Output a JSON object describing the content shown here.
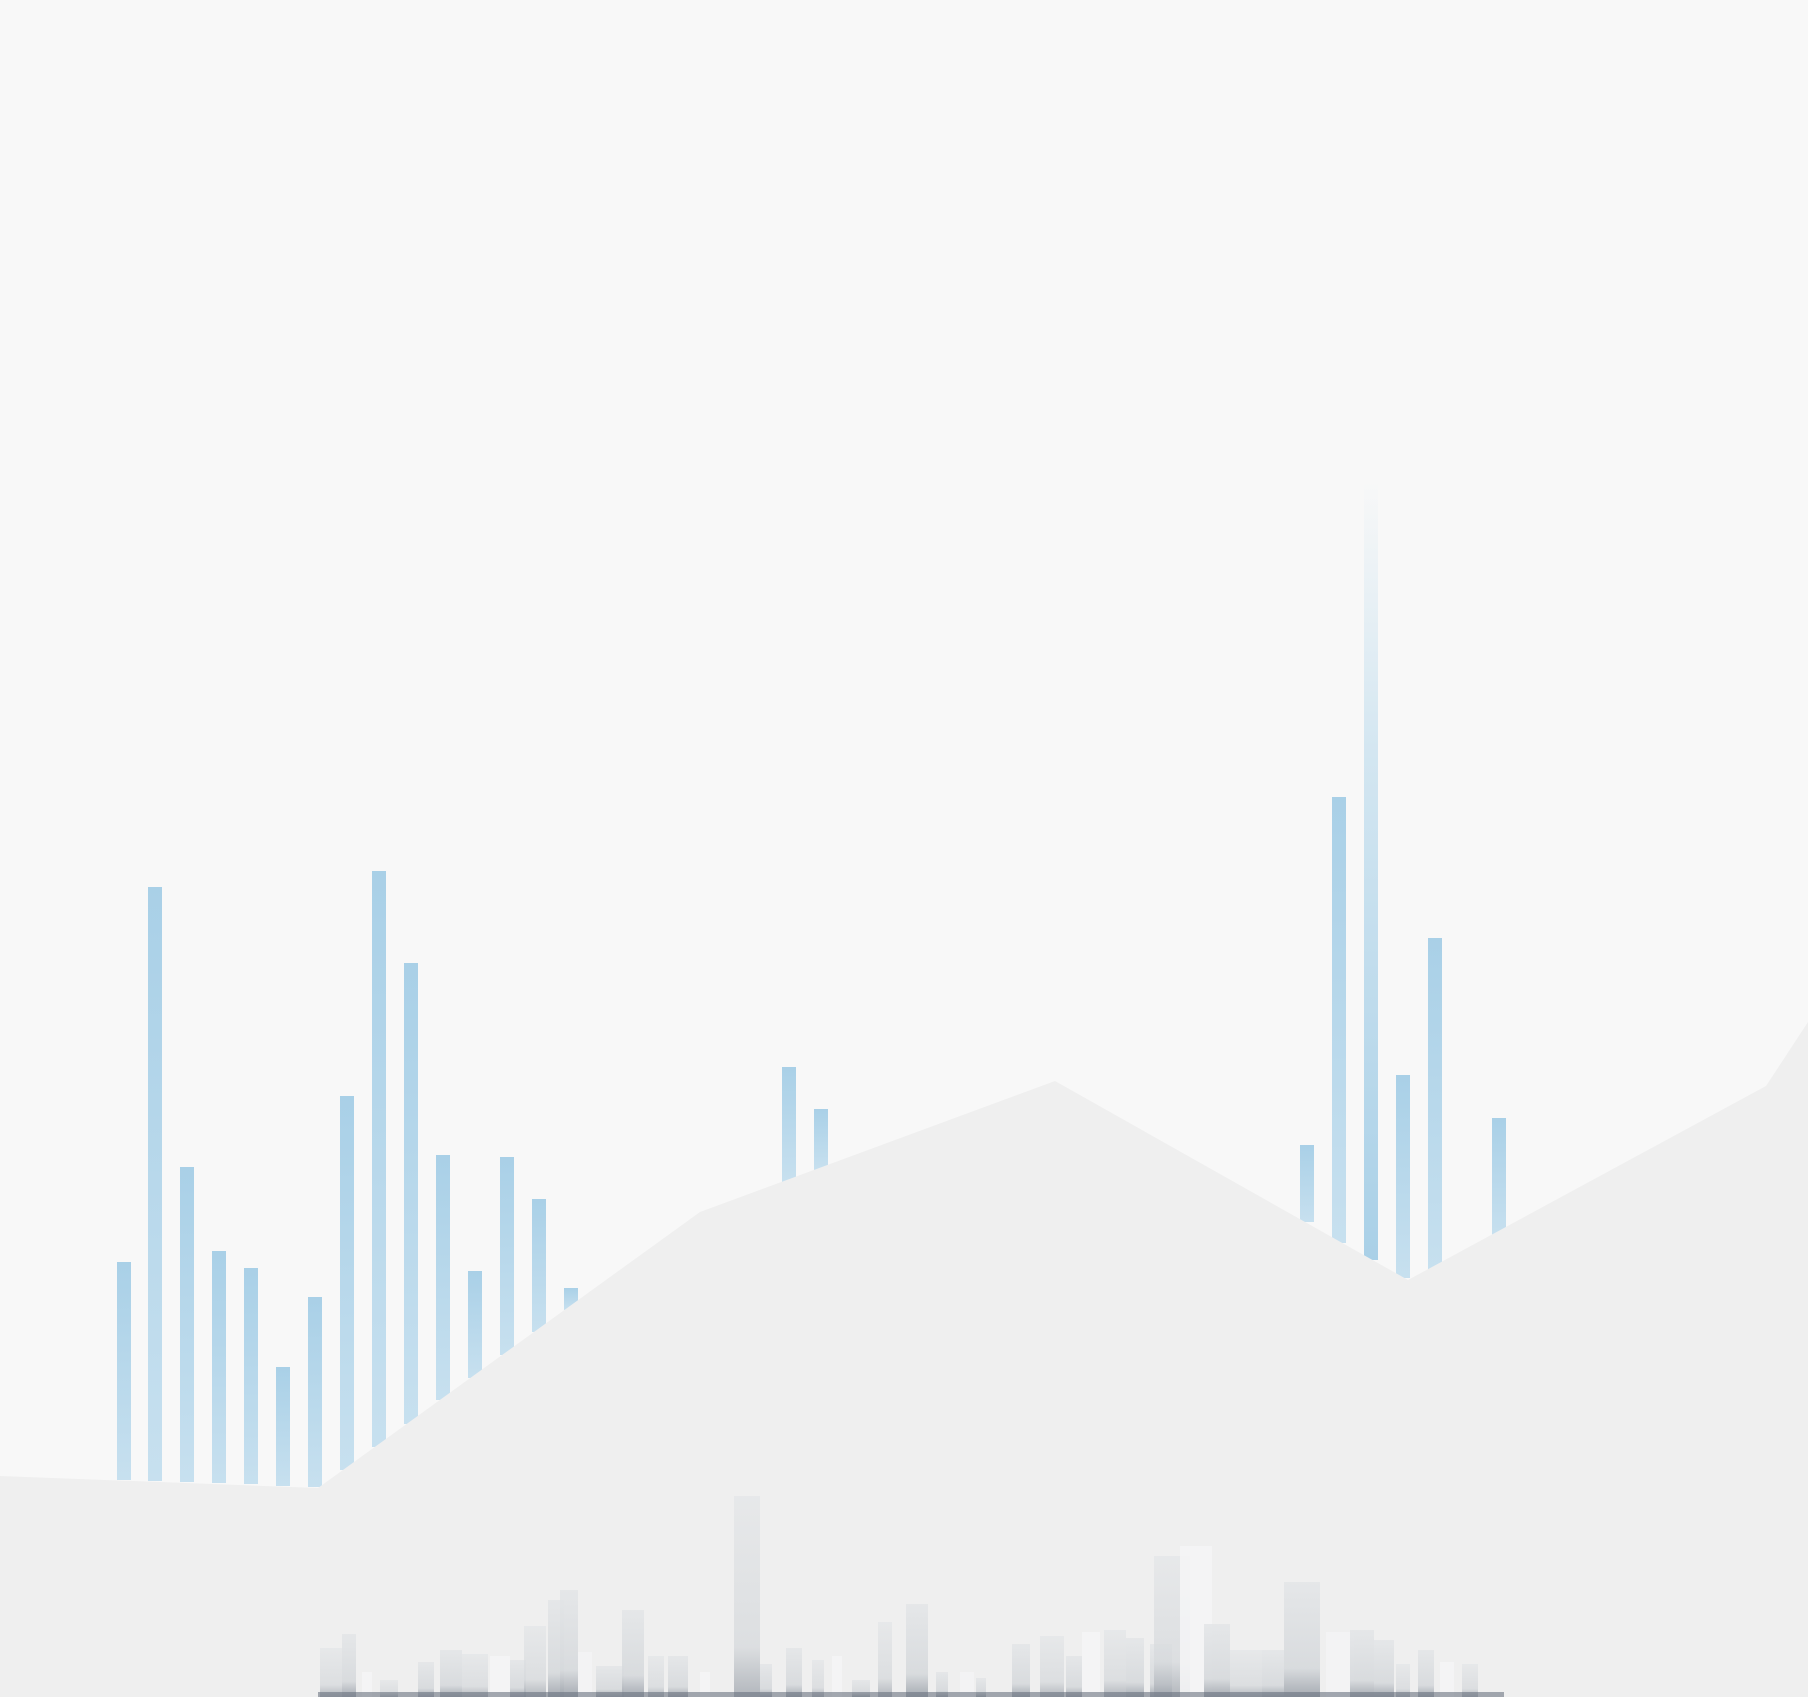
{
  "scene": {
    "kind": "decorative-background",
    "colors": {
      "background": "#f8f8f8",
      "ground": "#efefef",
      "bar": "#a9d0e7",
      "bar_light": "#c7e0ef",
      "skyline": "#d9dcdf",
      "skyline_light": "#ffffff",
      "skyline_dark": "#6b7380"
    }
  }
}
